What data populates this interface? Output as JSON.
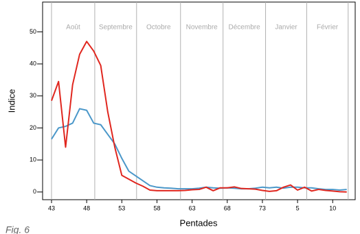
{
  "chart_data": {
    "type": "line",
    "caption": "Fig. 6",
    "x_label": "Pentades",
    "y_label": "Indice",
    "x": [
      43,
      44,
      45,
      46,
      47,
      48,
      49,
      50,
      51,
      52,
      53,
      54,
      55,
      56,
      57,
      58,
      59,
      60,
      61,
      62,
      63,
      64,
      65,
      66,
      67,
      68,
      69,
      70,
      71,
      72,
      73,
      74,
      75,
      76,
      77,
      78,
      79,
      80,
      81,
      82,
      83,
      84,
      85
    ],
    "series": [
      {
        "color": "#4a97c9",
        "values": [
          16.5,
          20,
          20.5,
          21.5,
          26,
          25.5,
          21.5,
          21,
          18,
          15,
          10.5,
          6.5,
          5,
          3.5,
          2,
          1.5,
          1.3,
          1.2,
          1,
          1,
          1,
          1.2,
          1.5,
          1.3,
          1.2,
          1.3,
          1.2,
          1,
          1,
          1.2,
          1.5,
          1.3,
          1.5,
          1.2,
          1.5,
          1.5,
          1.3,
          1.3,
          1,
          0.8,
          0.8,
          0.6,
          0.8
        ]
      },
      {
        "color": "#e0261e",
        "values": [
          28.5,
          34.5,
          14,
          33.5,
          43,
          47,
          44,
          39.5,
          25,
          14,
          5.2,
          4,
          2.8,
          1.8,
          0.6,
          0.4,
          0.4,
          0.4,
          0.4,
          0.5,
          0.7,
          0.8,
          1.5,
          0.4,
          1.3,
          1.3,
          1.6,
          1.1,
          1,
          0.9,
          0.5,
          0.2,
          0.4,
          1.5,
          2.2,
          0.6,
          1.5,
          0.3,
          0.8,
          0.5,
          0.3,
          0.1,
          0
        ]
      }
    ],
    "months": [
      "Août",
      "Septembre",
      "Octobre",
      "Novembre",
      "Décembre",
      "Janvier",
      "Février"
    ],
    "month_boundaries": [
      43,
      49.15,
      55.1,
      61.35,
      67.4,
      73.45,
      79.3,
      85.2
    ],
    "month_line_color": "#b0b0b0",
    "xlim": [
      41.73,
      86.2
    ],
    "ylim": [
      -2.4,
      59.3
    ],
    "xticks": [
      43,
      48,
      53,
      58,
      63,
      68,
      73,
      {
        "value": 78,
        "label": "5"
      },
      {
        "value": 83,
        "label": "10"
      }
    ],
    "yticks": [
      0,
      10,
      20,
      30,
      40,
      50
    ]
  }
}
